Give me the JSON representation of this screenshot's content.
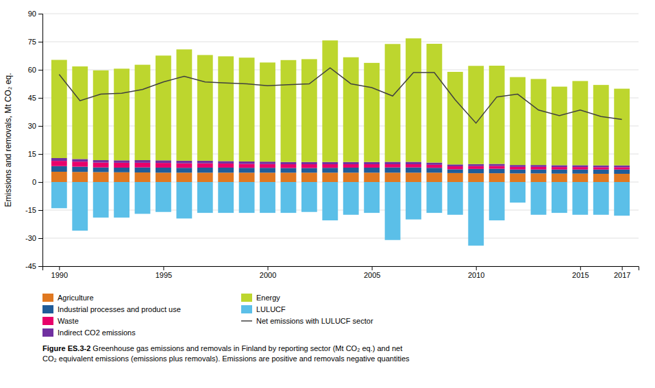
{
  "chart_data": {
    "type": "bar",
    "stacked": true,
    "grid": true,
    "ylabel": "Emissions and removals, Mt CO₂ eq.",
    "x": [
      1990,
      1991,
      1992,
      1993,
      1994,
      1995,
      1996,
      1997,
      1998,
      1999,
      2000,
      2001,
      2002,
      2003,
      2004,
      2005,
      2006,
      2007,
      2008,
      2009,
      2010,
      2011,
      2012,
      2013,
      2014,
      2015,
      2016,
      2017
    ],
    "xlim": [
      1989.2,
      2017.8
    ],
    "xticks": [
      1990,
      1995,
      2000,
      2005,
      2010,
      2015,
      2017
    ],
    "ylim": [
      -45,
      90
    ],
    "yticks": [
      -45,
      -30,
      -15,
      0,
      15,
      30,
      45,
      60,
      75,
      90
    ],
    "series": [
      {
        "name": "Agriculture",
        "color": "#e07820",
        "values": [
          5.5,
          5.4,
          5.3,
          5.2,
          5.1,
          5.0,
          5.0,
          5.0,
          5.0,
          5.0,
          5.0,
          5.0,
          5.0,
          5.0,
          5.0,
          5.0,
          5.0,
          5.0,
          5.0,
          4.8,
          4.7,
          4.7,
          4.6,
          4.6,
          4.5,
          4.5,
          4.4,
          4.4
        ]
      },
      {
        "name": "Industrial processes and product use",
        "color": "#1f5c99",
        "values": [
          3.0,
          2.8,
          2.5,
          2.5,
          2.7,
          2.7,
          2.6,
          2.7,
          2.7,
          2.6,
          2.6,
          2.5,
          2.5,
          2.6,
          2.7,
          2.7,
          2.8,
          2.8,
          2.6,
          2.0,
          2.3,
          2.4,
          2.1,
          2.1,
          2.2,
          2.2,
          2.3,
          2.3
        ]
      },
      {
        "name": "Waste",
        "color": "#e8006a",
        "values": [
          2.8,
          2.7,
          2.6,
          2.6,
          2.5,
          2.5,
          2.4,
          2.3,
          2.2,
          2.1,
          2.0,
          2.0,
          2.0,
          1.9,
          1.8,
          1.8,
          1.7,
          1.7,
          1.6,
          1.6,
          1.5,
          1.5,
          1.4,
          1.4,
          1.3,
          1.3,
          1.2,
          1.2
        ]
      },
      {
        "name": "Indirect CO2 emissions",
        "color": "#7030a0",
        "values": [
          1.5,
          1.4,
          1.3,
          1.3,
          1.4,
          1.4,
          1.4,
          1.4,
          1.3,
          1.3,
          1.3,
          1.2,
          1.2,
          1.2,
          1.2,
          1.2,
          1.3,
          1.3,
          1.2,
          1.0,
          1.1,
          1.1,
          1.0,
          1.0,
          1.0,
          1.0,
          1.0,
          1.0
        ]
      },
      {
        "name": "Energy",
        "color": "#bdd62e",
        "values": [
          52.5,
          49.5,
          48.0,
          49.0,
          51.0,
          56.0,
          59.5,
          56.5,
          56.0,
          55.5,
          53.0,
          54.5,
          55.0,
          65.0,
          56.0,
          53.0,
          63.0,
          66.0,
          63.5,
          49.5,
          52.5,
          52.5,
          47.0,
          46.0,
          42.0,
          45.0,
          43.0,
          41.0
        ]
      },
      {
        "name": "LULUCF",
        "color": "#5bbfe8",
        "values": [
          -14.0,
          -26.0,
          -19.0,
          -19.0,
          -17.0,
          -16.0,
          -19.5,
          -16.5,
          -16.5,
          -16.5,
          -16.5,
          -16.5,
          -16.0,
          -20.5,
          -17.5,
          -16.5,
          -31.0,
          -20.0,
          -16.5,
          -17.5,
          -34.0,
          -20.5,
          -11.0,
          -17.5,
          -16.5,
          -17.5,
          -17.5,
          -18.0
        ]
      },
      {
        "name": "Net emissions with LULUCF sector",
        "type": "line",
        "color": "#404040",
        "values": [
          57.5,
          43.5,
          47.0,
          47.5,
          49.5,
          53.5,
          56.5,
          53.5,
          53.0,
          52.5,
          51.5,
          52.0,
          52.5,
          61.0,
          52.5,
          50.5,
          46.0,
          58.5,
          58.5,
          44.0,
          31.5,
          45.5,
          47.0,
          38.5,
          35.5,
          38.5,
          35.0,
          33.5
        ]
      }
    ],
    "caption_bold": "Figure ES.3-2 ",
    "caption": "Greenhouse gas emissions and removals in Finland by reporting sector (Mt CO₂ eq.) and net\nCO₂ equivalent emissions (emissions plus removals). Emissions are positive and removals negative quantities"
  }
}
